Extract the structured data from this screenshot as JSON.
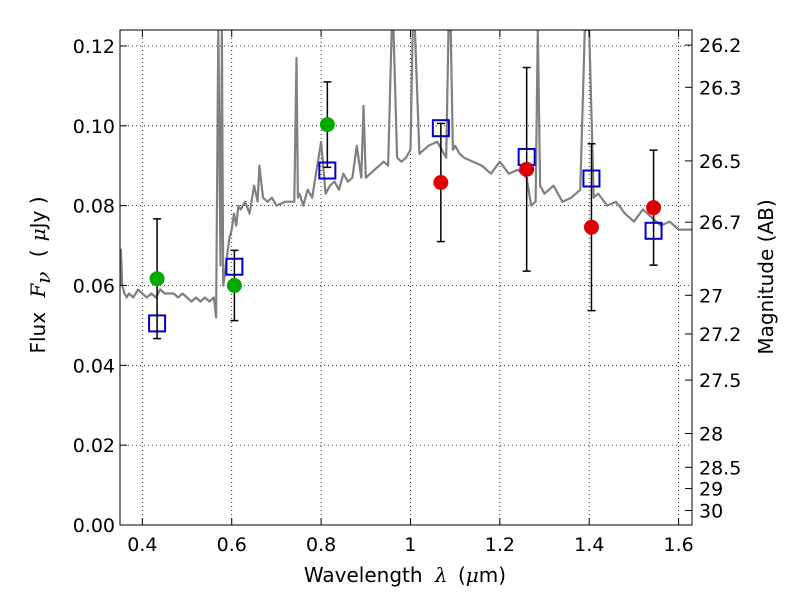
{
  "chart_data": {
    "type": "scatter",
    "xlabel": {
      "prefix": "Wavelength",
      "symbol": "λ",
      "unit_open": "(",
      "unit_mu": "μ",
      "unit_rest": "m)"
    },
    "ylabel": {
      "prefix": "Flux",
      "symbol": "F",
      "subscript": "ν",
      "unit_open": "(",
      "unit_mu": "μ",
      "unit_rest": "Jy )"
    },
    "y2label": "Magnitude (AB)",
    "xlim": [
      0.35,
      1.63
    ],
    "ylim": [
      0.0,
      0.124
    ],
    "grid": true,
    "x_ticks": [
      {
        "v": 0.4,
        "label": "0.4"
      },
      {
        "v": 0.6,
        "label": "0.6"
      },
      {
        "v": 0.8,
        "label": "0.8"
      },
      {
        "v": 1.0,
        "label": "1"
      },
      {
        "v": 1.2,
        "label": "1.2"
      },
      {
        "v": 1.4,
        "label": "1.4"
      },
      {
        "v": 1.6,
        "label": "1.6"
      }
    ],
    "y_ticks": [
      {
        "v": 0.0,
        "label": "0.00"
      },
      {
        "v": 0.02,
        "label": "0.02"
      },
      {
        "v": 0.04,
        "label": "0.04"
      },
      {
        "v": 0.06,
        "label": "0.06"
      },
      {
        "v": 0.08,
        "label": "0.08"
      },
      {
        "v": 0.1,
        "label": "0.10"
      },
      {
        "v": 0.12,
        "label": "0.12"
      }
    ],
    "mag_ticks": [
      {
        "mag": 26.2,
        "label": "26.2"
      },
      {
        "mag": 26.3,
        "label": "26.3"
      },
      {
        "mag": 26.5,
        "label": "26.5"
      },
      {
        "mag": 26.7,
        "label": "26.7"
      },
      {
        "mag": 27.0,
        "label": "27"
      },
      {
        "mag": 27.2,
        "label": "27.2"
      },
      {
        "mag": 27.5,
        "label": "27.5"
      },
      {
        "mag": 28.0,
        "label": "28"
      },
      {
        "mag": 28.5,
        "label": "28.5"
      },
      {
        "mag": 29.0,
        "label": "29"
      },
      {
        "mag": 30.0,
        "label": "30"
      }
    ],
    "series": [
      {
        "name": "model spectrum",
        "kind": "line",
        "color": "#808080",
        "x": [
          0.35,
          0.352,
          0.355,
          0.36,
          0.365,
          0.37,
          0.38,
          0.39,
          0.4,
          0.41,
          0.42,
          0.43,
          0.44,
          0.45,
          0.46,
          0.47,
          0.48,
          0.49,
          0.5,
          0.51,
          0.52,
          0.53,
          0.54,
          0.55,
          0.56,
          0.565,
          0.57,
          0.575,
          0.578,
          0.581,
          0.585,
          0.59,
          0.595,
          0.6,
          0.605,
          0.61,
          0.615,
          0.62,
          0.63,
          0.64,
          0.65,
          0.658,
          0.662,
          0.67,
          0.68,
          0.69,
          0.7,
          0.72,
          0.74,
          0.745,
          0.748,
          0.752,
          0.76,
          0.77,
          0.78,
          0.79,
          0.8,
          0.81,
          0.82,
          0.83,
          0.84,
          0.85,
          0.86,
          0.87,
          0.88,
          0.89,
          0.895,
          0.9,
          0.91,
          0.92,
          0.94,
          0.95,
          0.958,
          0.962,
          0.97,
          0.98,
          0.99,
          1.0,
          1.005,
          1.01,
          1.02,
          1.04,
          1.06,
          1.08,
          1.085,
          1.09,
          1.095,
          1.1,
          1.11,
          1.12,
          1.14,
          1.16,
          1.18,
          1.2,
          1.22,
          1.24,
          1.26,
          1.27,
          1.28,
          1.285,
          1.29,
          1.3,
          1.32,
          1.34,
          1.36,
          1.38,
          1.39,
          1.4,
          1.41,
          1.42,
          1.44,
          1.46,
          1.48,
          1.5,
          1.52,
          1.54,
          1.56,
          1.58,
          1.6,
          1.63
        ],
        "y": [
          0.06,
          0.069,
          0.06,
          0.058,
          0.057,
          0.058,
          0.057,
          0.059,
          0.058,
          0.057,
          0.058,
          0.057,
          0.059,
          0.058,
          0.058,
          0.058,
          0.057,
          0.058,
          0.057,
          0.056,
          0.057,
          0.056,
          0.057,
          0.056,
          0.057,
          0.052,
          0.124,
          0.065,
          0.124,
          0.06,
          0.063,
          0.068,
          0.072,
          0.074,
          0.078,
          0.075,
          0.08,
          0.079,
          0.081,
          0.078,
          0.085,
          0.081,
          0.09,
          0.082,
          0.081,
          0.082,
          0.08,
          0.081,
          0.081,
          0.117,
          0.082,
          0.083,
          0.08,
          0.084,
          0.082,
          0.089,
          0.096,
          0.083,
          0.085,
          0.086,
          0.084,
          0.088,
          0.086,
          0.087,
          0.095,
          0.087,
          0.105,
          0.087,
          0.088,
          0.089,
          0.091,
          0.09,
          0.124,
          0.124,
          0.092,
          0.091,
          0.092,
          0.094,
          0.124,
          0.124,
          0.093,
          0.095,
          0.096,
          0.092,
          0.124,
          0.124,
          0.094,
          0.095,
          0.093,
          0.092,
          0.091,
          0.09,
          0.088,
          0.091,
          0.088,
          0.089,
          0.087,
          0.08,
          0.081,
          0.124,
          0.085,
          0.083,
          0.085,
          0.081,
          0.082,
          0.084,
          0.124,
          0.124,
          0.082,
          0.083,
          0.08,
          0.081,
          0.078,
          0.076,
          0.079,
          0.077,
          0.075,
          0.076,
          0.074,
          0.074
        ]
      },
      {
        "name": "model photometry",
        "kind": "open-square",
        "color": "#0000cc",
        "points": [
          {
            "x": 0.433,
            "y": 0.0505
          },
          {
            "x": 0.606,
            "y": 0.0647
          },
          {
            "x": 0.814,
            "y": 0.0888
          },
          {
            "x": 1.068,
            "y": 0.0994
          },
          {
            "x": 1.26,
            "y": 0.0922
          },
          {
            "x": 1.405,
            "y": 0.0868
          },
          {
            "x": 1.544,
            "y": 0.0737
          }
        ]
      },
      {
        "name": "observed (green)",
        "kind": "filled-circle",
        "color": "#00aa00",
        "points": [
          {
            "x": 0.433,
            "y": 0.0617,
            "err": 0.015
          },
          {
            "x": 0.606,
            "y": 0.06,
            "err": 0.0088
          },
          {
            "x": 0.814,
            "y": 0.1003,
            "err": 0.0107
          }
        ]
      },
      {
        "name": "observed (red)",
        "kind": "filled-circle",
        "color": "#dd0000",
        "points": [
          {
            "x": 1.068,
            "y": 0.0858,
            "err": 0.0148
          },
          {
            "x": 1.26,
            "y": 0.0891,
            "err": 0.0255
          },
          {
            "x": 1.405,
            "y": 0.0746,
            "err": 0.0209
          },
          {
            "x": 1.544,
            "y": 0.0795,
            "err": 0.0144
          }
        ]
      }
    ]
  }
}
